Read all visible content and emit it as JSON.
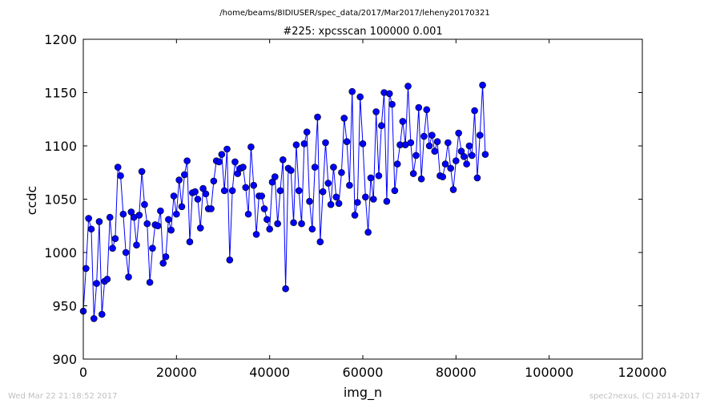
{
  "header": {
    "path": "/home/beams/8IDIUSER/spec_data/2017/Mar2017/leheny20170321",
    "title": "#225: xpcsscan 100000 0.001"
  },
  "footer": {
    "timestamp": "Wed Mar 22 21:18:52 2017",
    "credit": "spec2nexus, (C) 2014-2017"
  },
  "chart_data": {
    "type": "line",
    "title": "#225: xpcsscan 100000 0.001",
    "xlabel": "img_n",
    "ylabel": "ccdc",
    "xlim": [
      0,
      120000
    ],
    "ylim": [
      900,
      1200
    ],
    "xticks": [
      0,
      20000,
      40000,
      60000,
      80000,
      100000,
      120000
    ],
    "yticks": [
      900,
      950,
      1000,
      1050,
      1100,
      1150,
      1200
    ],
    "grid": false,
    "legend": "none",
    "line_color": "#0000ff",
    "marker_color": "#0000ff",
    "x_step": 571.43,
    "values": [
      945,
      985,
      1032,
      1022,
      938,
      971,
      1029,
      942,
      973,
      975,
      1033,
      1004,
      1013,
      1080,
      1072,
      1036,
      1000,
      977,
      1038,
      1033,
      1007,
      1035,
      1076,
      1045,
      1027,
      972,
      1004,
      1026,
      1025,
      1039,
      990,
      996,
      1031,
      1021,
      1053,
      1036,
      1068,
      1043,
      1073,
      1086,
      1010,
      1056,
      1057,
      1050,
      1023,
      1060,
      1055,
      1041,
      1041,
      1067,
      1086,
      1085,
      1092,
      1058,
      1097,
      993,
      1058,
      1085,
      1074,
      1079,
      1080,
      1061,
      1036,
      1099,
      1063,
      1017,
      1053,
      1053,
      1041,
      1031,
      1022,
      1066,
      1071,
      1027,
      1058,
      1087,
      966,
      1079,
      1077,
      1028,
      1101,
      1058,
      1027,
      1102,
      1113,
      1048,
      1022,
      1080,
      1127,
      1010,
      1057,
      1103,
      1065,
      1045,
      1080,
      1052,
      1046,
      1075,
      1126,
      1104,
      1063,
      1151,
      1035,
      1047,
      1146,
      1102,
      1052,
      1019,
      1070,
      1050,
      1132,
      1072,
      1119,
      1150,
      1048,
      1149,
      1139,
      1058,
      1083,
      1101,
      1123,
      1101,
      1156,
      1103,
      1074,
      1091,
      1136,
      1069,
      1109,
      1134,
      1100,
      1110,
      1095,
      1104,
      1072,
      1071,
      1083,
      1103,
      1079,
      1059,
      1086,
      1112,
      1095,
      1090,
      1083,
      1100,
      1091,
      1133,
      1070,
      1110,
      1157,
      1092
    ]
  }
}
